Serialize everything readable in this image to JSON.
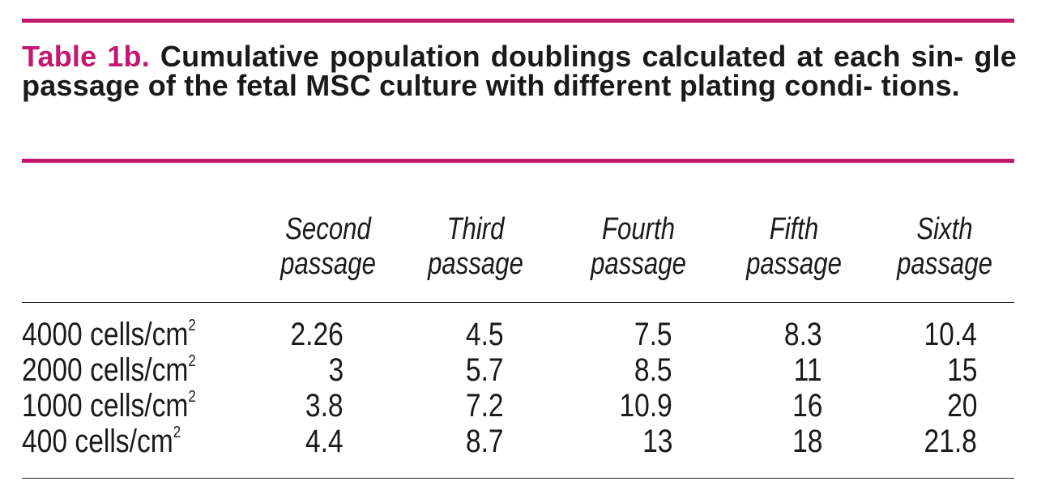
{
  "caption": {
    "label": "Table 1b.",
    "text": "Cumulative population doublings calculated at each sin- gle passage of the fetal MSC culture with different plating condi- tions."
  },
  "columns": [
    {
      "line1": "Second",
      "line2": "passage"
    },
    {
      "line1": "Third",
      "line2": "passage"
    },
    {
      "line1": "Fourth",
      "line2": "passage"
    },
    {
      "line1": "Fifth",
      "line2": "passage"
    },
    {
      "line1": "Sixth",
      "line2": "passage"
    }
  ],
  "rows": [
    {
      "label": "4000 cells/cm",
      "unit_exp": "2",
      "values": [
        "2.26",
        "4.5",
        "7.5",
        "8.3",
        "10.4"
      ]
    },
    {
      "label": "2000 cells/cm",
      "unit_exp": "2",
      "values": [
        "3",
        "5.7",
        "8.5",
        "11",
        "15"
      ]
    },
    {
      "label": "1000 cells/cm",
      "unit_exp": "2",
      "values": [
        "3.8",
        "7.2",
        "10.9",
        "16",
        "20"
      ]
    },
    {
      "label": "400 cells/cm",
      "unit_exp": "2",
      "values": [
        "4.4",
        "8.7",
        "13",
        "18",
        "21.8"
      ]
    }
  ],
  "colors": {
    "accent": "#c4176f",
    "text": "#1a1a1a"
  }
}
